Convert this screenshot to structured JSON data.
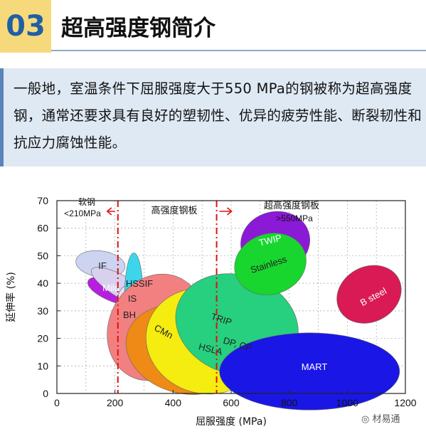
{
  "header": {
    "number": "03",
    "title": "超高强度钢简介"
  },
  "intro": {
    "text": "一般地，室温条件下屈服强度大于550 MPa的钢被称为超高强度钢，通常还要求具有良好的塑韧性、优异的疲劳性能、断裂韧性和抗应力腐蚀性能。"
  },
  "watermark": "材易通",
  "chart_data": {
    "type": "scatter",
    "xlabel": "屈服强度 (MPa)",
    "ylabel": "延伸率 (%)",
    "xlim": [
      0,
      1200
    ],
    "ylim": [
      0,
      70
    ],
    "x_ticks": [
      "0",
      "200",
      "400",
      "600",
      "800",
      "1000",
      "1200"
    ],
    "y_ticks": [
      "0",
      "10",
      "20",
      "30",
      "40",
      "50",
      "60",
      "70"
    ],
    "grid": true,
    "boundaries": [
      210,
      550
    ],
    "region_labels": [
      {
        "text1": "软钢",
        "text2": "<210MPa"
      },
      {
        "text1": "高强度钢板",
        "text2": ""
      },
      {
        "text1": "超高强度钢板",
        "text2": ">550MPa"
      }
    ],
    "regions": [
      {
        "name": "IF",
        "cx": 150,
        "cy": 47,
        "rx": 45,
        "ry": 9,
        "rot": -82,
        "color": "#ccd4f2"
      },
      {
        "name": "Mild",
        "cx": 205,
        "cy": 37,
        "rx": 38,
        "ry": 11,
        "rot": -70,
        "color": "#b71fe0"
      },
      {
        "name": "HSSIF",
        "cx": 235,
        "cy": 38,
        "rx": 38,
        "ry": 14,
        "rot": -60,
        "color": "#d8d0ef"
      },
      {
        "name": "BH",
        "cx": 240,
        "cy": 31,
        "rx": 36,
        "ry": 8,
        "rot": 0,
        "color": "#dfe2f5"
      },
      {
        "name": "IS",
        "cx": 265,
        "cy": 35,
        "rx": 32,
        "ry": 16,
        "rot": 0,
        "color": "#3cd5ea"
      },
      {
        "name": "CMn",
        "cx": 340,
        "cy": 24,
        "rx": 160,
        "ry": 20,
        "rot": 28,
        "color": "#f28080"
      },
      {
        "name": "HSLA",
        "cx": 440,
        "cy": 16,
        "rx": 205,
        "ry": 16,
        "rot": 14,
        "color": "#ef8a16"
      },
      {
        "name": "DP, CP",
        "cx": 510,
        "cy": 19,
        "rx": 205,
        "ry": 19,
        "rot": 16,
        "color": "#f5ec10"
      },
      {
        "name": "TRIP",
        "cx": 620,
        "cy": 25,
        "rx": 215,
        "ry": 18,
        "rot": 18,
        "color": "#26d07e"
      },
      {
        "name": "MART",
        "cx": 870,
        "cy": 8,
        "rx": 310,
        "ry": 14,
        "rot": 0,
        "color": "#1a17e6"
      },
      {
        "name": "TWIP",
        "cx": 752,
        "cy": 55,
        "rx": 120,
        "ry": 11,
        "rot": -14,
        "color": "#8a1ad6"
      },
      {
        "name": "Stainless",
        "cx": 735,
        "cy": 47,
        "rx": 125,
        "ry": 11,
        "rot": -18,
        "color": "#18d62e"
      },
      {
        "name": "B steel",
        "cx": 1075,
        "cy": 36,
        "rx": 115,
        "ry": 10,
        "rot": -28,
        "color": "#d91a55"
      }
    ]
  }
}
